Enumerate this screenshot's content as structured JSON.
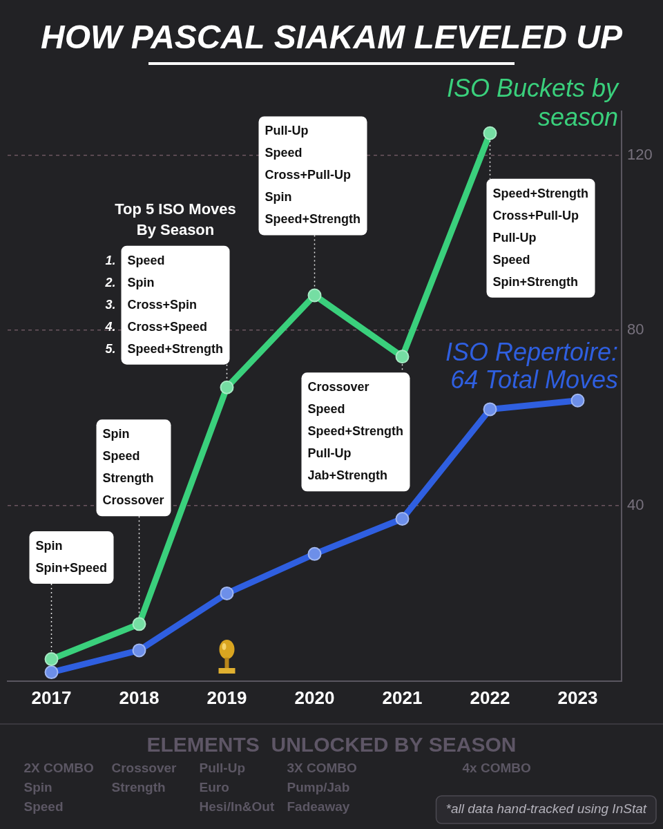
{
  "chart_data": {
    "type": "line",
    "title": "HOW PASCAL SIAKAM LEVELED UP",
    "categories": [
      "2017",
      "2018",
      "2019",
      "2020",
      "2021",
      "2022",
      "2023"
    ],
    "series": [
      {
        "name": "ISO Buckets by season",
        "color": "#3ad07c",
        "marker": "circle",
        "line_style": "solid",
        "values": [
          5,
          13,
          67,
          88,
          74,
          125,
          null
        ]
      },
      {
        "name": "ISO Repertoire: 64 Total Moves",
        "color": "#2f5fe0",
        "marker": "circle",
        "line_style": "solid",
        "values": [
          2,
          7,
          20,
          29,
          37,
          62,
          64
        ]
      }
    ],
    "ylim": [
      0,
      130
    ],
    "yticks": [
      40,
      80,
      120
    ],
    "grid": true,
    "top_moves": [
      {
        "items": [
          "Spin",
          "Spin+Speed"
        ]
      },
      {
        "items": [
          "Spin",
          "Speed",
          "Strength",
          "Crossover"
        ]
      },
      {
        "heading": "Top 5 ISO Moves By Season",
        "numbers": [
          "1.",
          "2.",
          "3.",
          "4.",
          "5."
        ],
        "items": [
          "Speed",
          "Spin",
          "Cross+Spin",
          "Cross+Speed",
          "Speed+Strength"
        ]
      },
      {
        "items": [
          "Pull-Up",
          "Speed",
          "Cross+Pull-Up",
          "Spin",
          "Speed+Strength"
        ]
      },
      {
        "items": [
          "Crossover",
          "Speed",
          "Speed+Strength",
          "Pull-Up",
          "Jab+Strength"
        ]
      },
      {
        "items": [
          "Speed+Strength",
          "Cross+Pull-Up",
          "Pull-Up",
          "Speed",
          "Spin+Strength"
        ]
      },
      null
    ]
  },
  "elements_unlocked": {
    "title": "ELEMENTS  UNLOCKED BY SEASON",
    "items_by_season": [
      [
        "2X COMBO",
        "Spin",
        "Speed"
      ],
      [
        "Crossover",
        "Strength"
      ],
      [
        "Pull-Up",
        "Euro",
        "Hesi/In&Out"
      ],
      [
        "3X COMBO",
        "Pump/Jab",
        "Fadeaway"
      ],
      [],
      [
        "4x COMBO"
      ],
      []
    ]
  },
  "footnote": "*all data hand-tracked using InStat"
}
